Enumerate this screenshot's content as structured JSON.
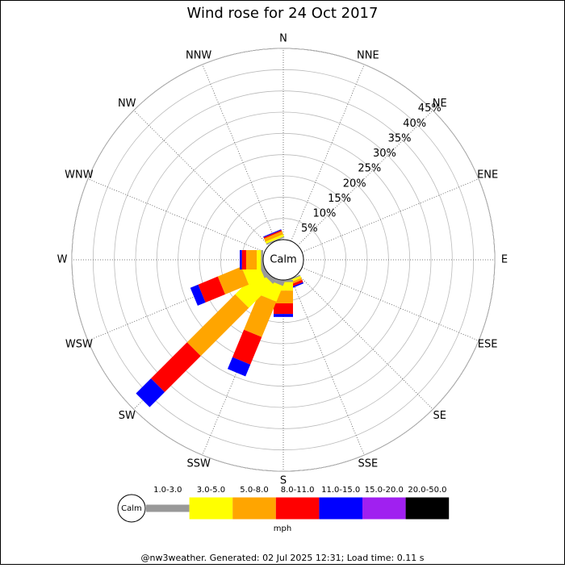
{
  "chart_data": {
    "type": "windrose",
    "title": "Wind rose for 24 Oct 2017",
    "directions": [
      "N",
      "NNE",
      "NE",
      "ENE",
      "E",
      "ESE",
      "SE",
      "SSE",
      "S",
      "SSW",
      "SW",
      "WSW",
      "W",
      "WNW",
      "NW",
      "NNW"
    ],
    "calm_label": "Calm",
    "rlim": [
      0,
      45
    ],
    "rticks": [
      {
        "value": 5,
        "label": "5%"
      },
      {
        "value": 10,
        "label": "10%"
      },
      {
        "value": 15,
        "label": "15%"
      },
      {
        "value": 20,
        "label": "20%"
      },
      {
        "value": 25,
        "label": "25%"
      },
      {
        "value": 30,
        "label": "30%"
      },
      {
        "value": 35,
        "label": "35%"
      },
      {
        "value": 40,
        "label": "40%"
      },
      {
        "value": 45,
        "label": "45%"
      }
    ],
    "series": [
      {
        "name": "1.0-3.0",
        "color": "#999999",
        "values": [
          0,
          0,
          0,
          0,
          0,
          0,
          0,
          0.3,
          0.5,
          1,
          1,
          1,
          0.5,
          0,
          0,
          0.3
        ]
      },
      {
        "name": "3.0-5.0",
        "color": "#ffff00",
        "values": [
          0,
          0,
          0,
          0,
          0,
          0,
          0,
          0.5,
          2,
          4,
          8,
          4,
          1,
          0,
          0,
          0.5
        ]
      },
      {
        "name": "5.0-8.0",
        "color": "#ffa500",
        "values": [
          0,
          0,
          0,
          0,
          0,
          0,
          0,
          0.5,
          3,
          9,
          16,
          6,
          2.5,
          0,
          0,
          0.8
        ]
      },
      {
        "name": "8.0-11.0",
        "color": "#ff0000",
        "values": [
          0,
          0,
          0,
          0,
          0,
          0,
          0,
          0.6,
          2.5,
          7,
          12,
          5,
          1,
          0,
          0,
          0.3
        ]
      },
      {
        "name": "11.0-15.0",
        "color": "#0000ff",
        "values": [
          0,
          0,
          0,
          0,
          0,
          0,
          0,
          0.3,
          0.7,
          3,
          5,
          2,
          0.5,
          0,
          0,
          0.2
        ]
      },
      {
        "name": "15.0-20.0",
        "color": "#a020f0",
        "values": [
          0,
          0,
          0,
          0,
          0,
          0,
          0,
          0,
          0,
          0,
          0,
          0,
          0,
          0,
          0,
          0
        ]
      },
      {
        "name": "20.0-50.0",
        "color": "#000000",
        "values": [
          0,
          0,
          0,
          0,
          0,
          0,
          0,
          0,
          0,
          0,
          0,
          0,
          0,
          0,
          0,
          0
        ]
      }
    ],
    "speed_unit": "mph",
    "footer": "@nw3weather. Generated: 02 Jul 2025 12:31; Load time: 0.11 s"
  }
}
